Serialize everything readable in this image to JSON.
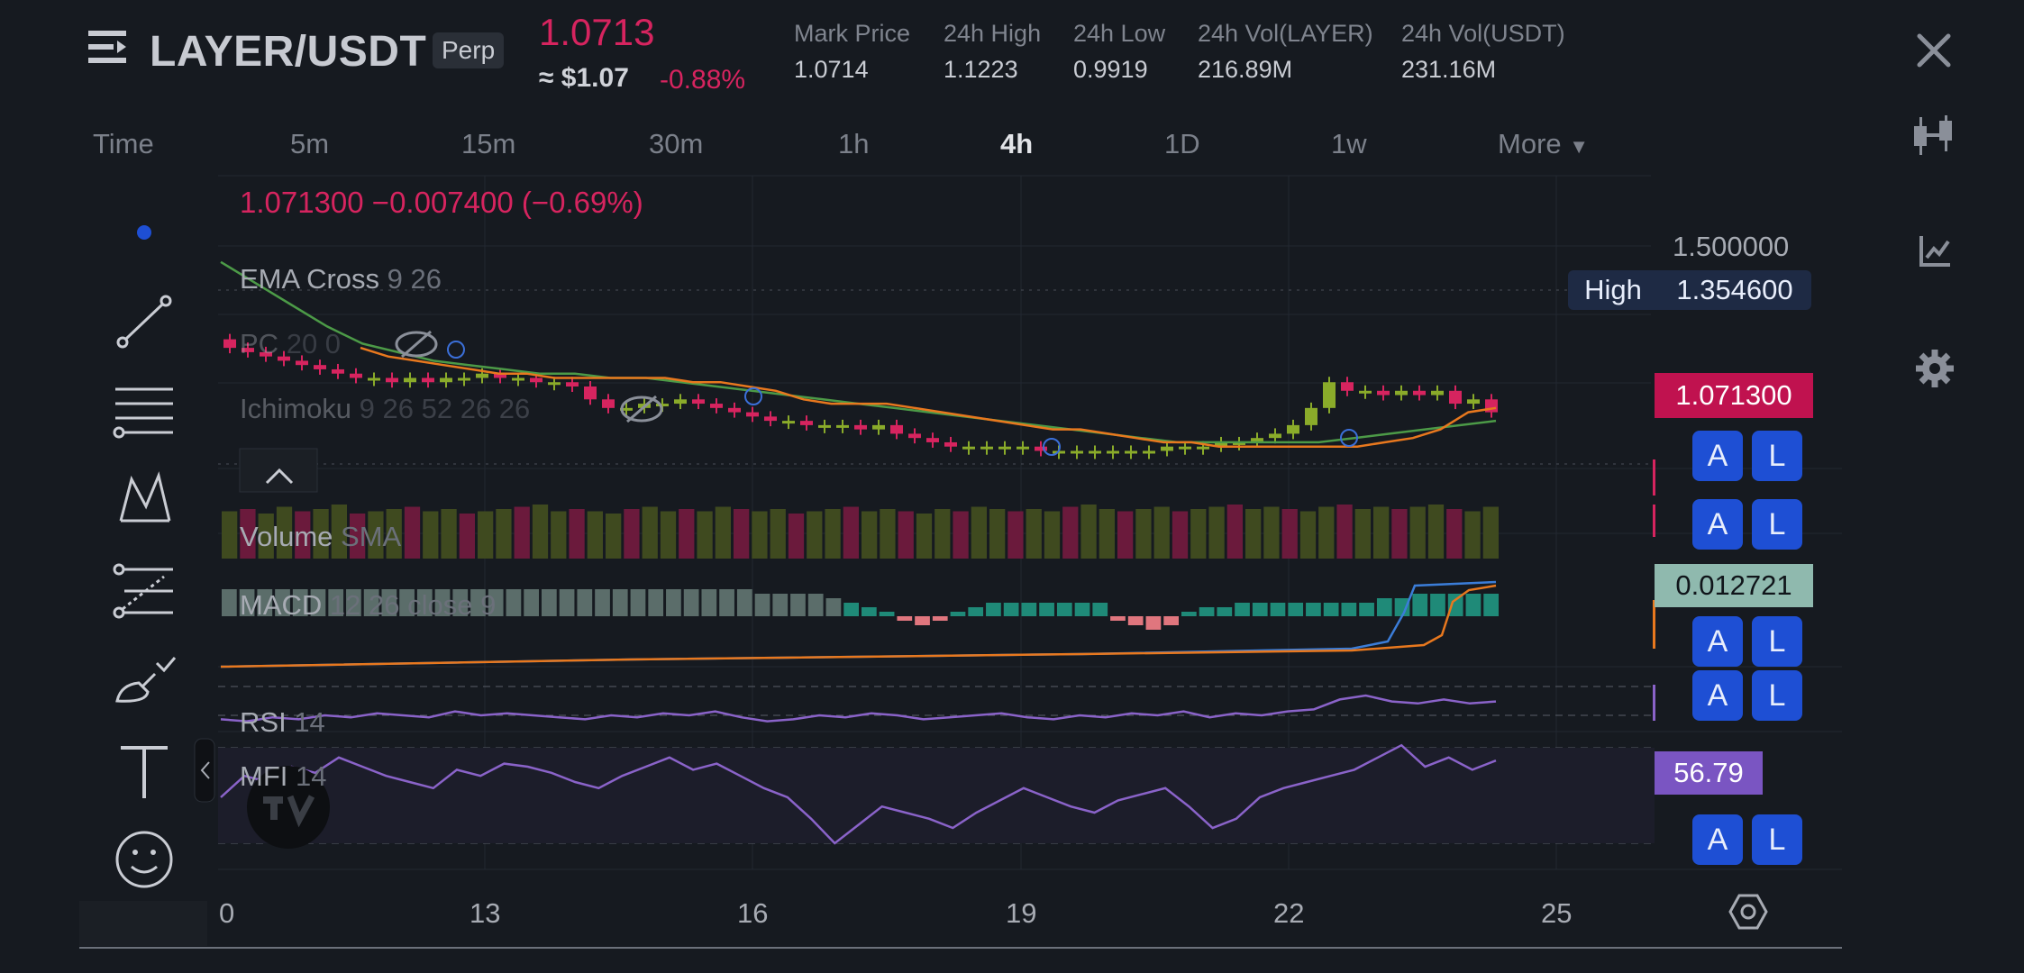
{
  "header": {
    "pair": "LAYER/USDT",
    "contract_type": "Perp",
    "last_price": "1.0713",
    "approx_usd": "≈ $1.07",
    "change_pct": "-0.88%",
    "stats": [
      {
        "label": "Mark Price",
        "value": "1.0714"
      },
      {
        "label": "24h High",
        "value": "1.1223"
      },
      {
        "label": "24h Low",
        "value": "0.9919"
      },
      {
        "label": "24h Vol(LAYER)",
        "value": "216.89M"
      },
      {
        "label": "24h Vol(USDT)",
        "value": "231.16M"
      }
    ]
  },
  "timeframes": {
    "time_label": "Time",
    "items": [
      "5m",
      "15m",
      "30m",
      "1h",
      "4h",
      "1D",
      "1w"
    ],
    "active": "4h",
    "more_label": "More"
  },
  "ohlc_line": "1.071300  −0.007400 (−0.69%)",
  "indicators": {
    "ema": {
      "name": "EMA Cross",
      "params": "9 26"
    },
    "pc": {
      "name": "PC",
      "params": "20 0"
    },
    "ichimoku": {
      "name": "Ichimoku",
      "params": "9 26 52 26 26"
    },
    "volume": {
      "name": "Volume",
      "params": "SMA"
    },
    "macd": {
      "name": "MACD",
      "params": "12 26 close 9"
    },
    "rsi": {
      "name": "RSI",
      "params": "14"
    },
    "mfi": {
      "name": "MFI",
      "params": "14"
    }
  },
  "price_axis": {
    "top": "1.500000",
    "high_label": "High",
    "high_value": "1.354600",
    "current": "1.071300",
    "macd_value": "0.012721",
    "mfi_value": "56.79"
  },
  "x_axis": [
    "0",
    "13",
    "16",
    "19",
    "22",
    "25"
  ],
  "buttons": {
    "a_label": "A",
    "l_label": "L"
  },
  "colors": {
    "up": "#8aab2a",
    "down": "#d6245f",
    "ema_fast": "#e8781e",
    "ema_slow": "#4c9a47",
    "rsi": "#8a63c9",
    "accent_blue": "#1e4fd4"
  },
  "chart_data": {
    "type": "candlestick",
    "close_series": [
      1.22,
      1.21,
      1.2,
      1.19,
      1.18,
      1.17,
      1.16,
      1.15,
      1.15,
      1.14,
      1.15,
      1.14,
      1.15,
      1.15,
      1.16,
      1.15,
      1.15,
      1.14,
      1.14,
      1.13,
      1.1,
      1.08,
      1.08,
      1.09,
      1.09,
      1.1,
      1.09,
      1.08,
      1.07,
      1.06,
      1.05,
      1.05,
      1.04,
      1.04,
      1.04,
      1.03,
      1.04,
      1.02,
      1.01,
      1.0,
      0.99,
      0.99,
      0.99,
      0.99,
      0.99,
      0.98,
      0.98,
      0.98,
      0.98,
      0.98,
      0.98,
      0.98,
      0.99,
      0.99,
      0.99,
      1.0,
      1.0,
      1.01,
      1.02,
      1.04,
      1.08,
      1.14,
      1.12,
      1.12,
      1.11,
      1.12,
      1.11,
      1.12,
      1.09,
      1.1,
      1.07
    ],
    "ema_fast": [
      1.22,
      1.2,
      1.19,
      1.18,
      1.17,
      1.16,
      1.16,
      1.15,
      1.15,
      1.15,
      1.15,
      1.15,
      1.14,
      1.14,
      1.13,
      1.12,
      1.1,
      1.09,
      1.09,
      1.09,
      1.08,
      1.07,
      1.06,
      1.05,
      1.04,
      1.03,
      1.03,
      1.02,
      1.01,
      1.0,
      1.0,
      0.99,
      0.99,
      0.99,
      0.99,
      0.99,
      0.99,
      1.0,
      1.01,
      1.03,
      1.07,
      1.08
    ],
    "ema_slow": [
      1.42,
      1.37,
      1.32,
      1.27,
      1.23,
      1.21,
      1.19,
      1.18,
      1.17,
      1.16,
      1.16,
      1.15,
      1.15,
      1.14,
      1.13,
      1.12,
      1.11,
      1.1,
      1.09,
      1.08,
      1.07,
      1.06,
      1.05,
      1.04,
      1.03,
      1.02,
      1.01,
      1.0,
      1.0,
      1.0,
      1.0,
      1.0,
      1.01,
      1.02,
      1.03,
      1.04,
      1.05
    ],
    "volume": [
      5,
      6,
      4,
      7,
      5,
      6,
      8,
      4,
      5,
      6,
      7,
      5,
      6,
      4,
      5,
      6,
      7,
      8,
      5,
      6,
      5,
      4,
      6,
      7,
      5,
      6,
      5,
      7,
      6,
      5,
      6,
      4,
      5,
      6,
      7,
      5,
      6,
      5,
      4,
      6,
      5,
      7,
      6,
      5,
      6,
      5,
      7,
      8,
      6,
      5,
      6,
      7,
      5,
      6,
      7,
      8,
      6,
      7,
      6,
      5,
      7,
      8,
      6,
      7,
      6,
      7,
      8,
      6,
      5,
      7
    ],
    "macd_hist": [
      6,
      6,
      6,
      6,
      6,
      6,
      6,
      6,
      6,
      6,
      6,
      6,
      6,
      6,
      6,
      6,
      6,
      6,
      6,
      6,
      6,
      6,
      6,
      6,
      6,
      6,
      6,
      6,
      6,
      6,
      5,
      5,
      5,
      5,
      4,
      3,
      2,
      1,
      -1,
      -2,
      -1,
      1,
      2,
      3,
      3,
      3,
      3,
      3,
      3,
      3,
      -1,
      -2,
      -3,
      -2,
      1,
      2,
      2,
      3,
      3,
      3,
      3,
      3,
      3,
      3,
      3,
      4,
      4,
      5,
      5,
      5,
      5,
      5
    ],
    "rsi": [
      48,
      47,
      49,
      48,
      50,
      49,
      51,
      50,
      49,
      52,
      50,
      51,
      50,
      49,
      48,
      50,
      49,
      51,
      50,
      52,
      49,
      47,
      48,
      50,
      49,
      51,
      50,
      48,
      49,
      50,
      51,
      49,
      48,
      50,
      49,
      51,
      50,
      52,
      49,
      51,
      50,
      52,
      53,
      58,
      60,
      57,
      56,
      58,
      56,
      57
    ],
    "mfi": [
      45,
      52,
      50,
      55,
      53,
      58,
      55,
      52,
      50,
      48,
      54,
      52,
      56,
      55,
      53,
      50,
      48,
      52,
      55,
      58,
      54,
      56,
      52,
      48,
      45,
      38,
      30,
      36,
      42,
      40,
      38,
      35,
      40,
      44,
      48,
      45,
      42,
      40,
      44,
      46,
      48,
      42,
      35,
      38,
      45,
      48,
      50,
      52,
      54,
      58,
      62,
      55,
      58,
      54,
      57
    ],
    "x_tick_labels": [
      "0",
      "13",
      "16",
      "19",
      "22",
      "25"
    ],
    "y_tick_labels": [
      "1.500000"
    ],
    "high_marker": 1.3546
  }
}
